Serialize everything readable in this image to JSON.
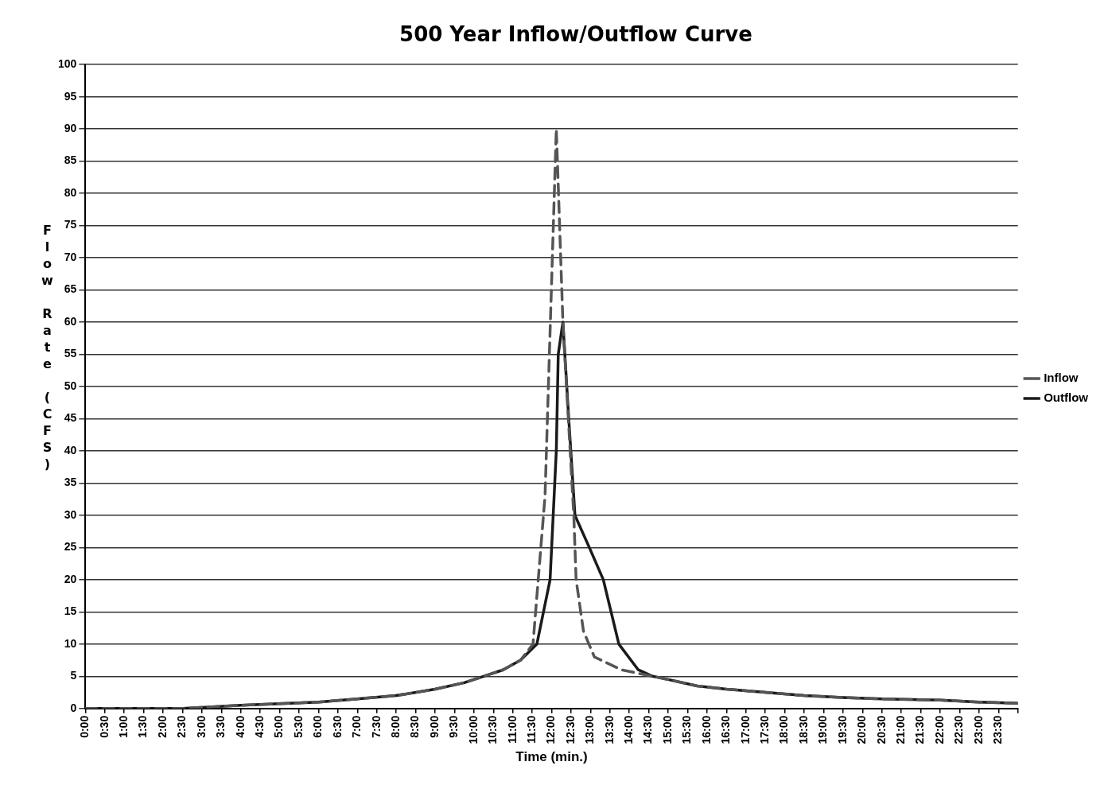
{
  "chart_data": {
    "type": "line",
    "title": "500 Year Inflow/Outflow Curve",
    "xlabel": "Time (min.)",
    "ylabel": "Flow Rate (CFS)",
    "xlim": [
      0,
      24
    ],
    "xticks": [
      {
        "value": 0,
        "label": "0:00"
      },
      {
        "value": 0.5,
        "label": "0:30"
      },
      {
        "value": 1,
        "label": "1:00"
      },
      {
        "value": 1.5,
        "label": "1:30"
      },
      {
        "value": 2,
        "label": "2:00"
      },
      {
        "value": 2.5,
        "label": "2:30"
      },
      {
        "value": 3,
        "label": "3:00"
      },
      {
        "value": 3.5,
        "label": "3:30"
      },
      {
        "value": 4,
        "label": "4:00"
      },
      {
        "value": 4.5,
        "label": "4:30"
      },
      {
        "value": 5,
        "label": "5:00"
      },
      {
        "value": 5.5,
        "label": "5:30"
      },
      {
        "value": 6,
        "label": "6:00"
      },
      {
        "value": 6.5,
        "label": "6:30"
      },
      {
        "value": 7,
        "label": "7:00"
      },
      {
        "value": 7.5,
        "label": "7:30"
      },
      {
        "value": 8,
        "label": "8:00"
      },
      {
        "value": 8.5,
        "label": "8:30"
      },
      {
        "value": 9,
        "label": "9:00"
      },
      {
        "value": 9.5,
        "label": "9:30"
      },
      {
        "value": 10,
        "label": "10:00"
      },
      {
        "value": 10.5,
        "label": "10:30"
      },
      {
        "value": 11,
        "label": "11:00"
      },
      {
        "value": 11.5,
        "label": "11:30"
      },
      {
        "value": 12,
        "label": "12:00"
      },
      {
        "value": 12.5,
        "label": "12:30"
      },
      {
        "value": 13,
        "label": "13:00"
      },
      {
        "value": 13.5,
        "label": "13:30"
      },
      {
        "value": 14,
        "label": "14:00"
      },
      {
        "value": 14.5,
        "label": "14:30"
      },
      {
        "value": 15,
        "label": "15:00"
      },
      {
        "value": 15.5,
        "label": "15:30"
      },
      {
        "value": 16,
        "label": "16:00"
      },
      {
        "value": 16.5,
        "label": "16:30"
      },
      {
        "value": 17,
        "label": "17:00"
      },
      {
        "value": 17.5,
        "label": "17:30"
      },
      {
        "value": 18,
        "label": "18:00"
      },
      {
        "value": 18.5,
        "label": "18:30"
      },
      {
        "value": 19,
        "label": "19:00"
      },
      {
        "value": 19.5,
        "label": "19:30"
      },
      {
        "value": 20,
        "label": "20:00"
      },
      {
        "value": 20.5,
        "label": "20:30"
      },
      {
        "value": 21,
        "label": "21:00"
      },
      {
        "value": 21.5,
        "label": "21:30"
      },
      {
        "value": 22,
        "label": "22:00"
      },
      {
        "value": 22.5,
        "label": "22:30"
      },
      {
        "value": 23,
        "label": "23:00"
      },
      {
        "value": 23.5,
        "label": "23:30"
      },
      {
        "value": 24,
        "label": null
      }
    ],
    "ylim": [
      0,
      100
    ],
    "yticks": [
      0,
      5,
      10,
      15,
      20,
      25,
      30,
      35,
      40,
      45,
      50,
      55,
      60,
      65,
      70,
      75,
      80,
      85,
      90,
      95,
      100
    ],
    "grid": "y",
    "legend": "right",
    "marker": "none",
    "series": [
      {
        "name": "Inflow",
        "color": "#555555",
        "line_style": "dashed",
        "x": [
          0,
          2.5,
          4,
          6,
          7,
          8,
          9,
          9.75,
          10.25,
          10.75,
          11.2,
          11.52,
          11.83,
          12.12,
          12.29,
          12.57,
          12.63,
          12.82,
          13.1,
          13.8,
          14.2,
          15,
          15.75,
          16.5,
          17.5,
          18.5,
          19.5,
          20.5,
          22,
          23,
          24
        ],
        "values": [
          0,
          0,
          0.5,
          1,
          1.5,
          2,
          3,
          4,
          5,
          6,
          7.5,
          10,
          33,
          90,
          60,
          30,
          20,
          12,
          8,
          6,
          5.5,
          4.5,
          3.5,
          3,
          2.5,
          2,
          1.7,
          1.5,
          1.3,
          1,
          0.8
        ]
      },
      {
        "name": "Outflow",
        "color": "#1a1a1a",
        "line_style": "solid",
        "x": [
          0,
          2.5,
          4,
          6,
          7,
          8,
          9,
          9.75,
          10.25,
          10.75,
          11.2,
          11.62,
          11.96,
          12.12,
          12.17,
          12.29,
          12.44,
          12.6,
          12.97,
          13.33,
          13.53,
          13.73,
          14.23,
          14.6,
          15,
          15.75,
          16.5,
          17.5,
          18.5,
          19.5,
          20.5,
          22,
          23,
          24
        ],
        "values": [
          0,
          0,
          0.5,
          1,
          1.5,
          2,
          3,
          4,
          5,
          6,
          7.5,
          10,
          20,
          40,
          55,
          60,
          45,
          30,
          25,
          20,
          15,
          10,
          6,
          5,
          4.5,
          3.5,
          3,
          2.5,
          2,
          1.7,
          1.5,
          1.3,
          1,
          0.8
        ]
      }
    ]
  }
}
